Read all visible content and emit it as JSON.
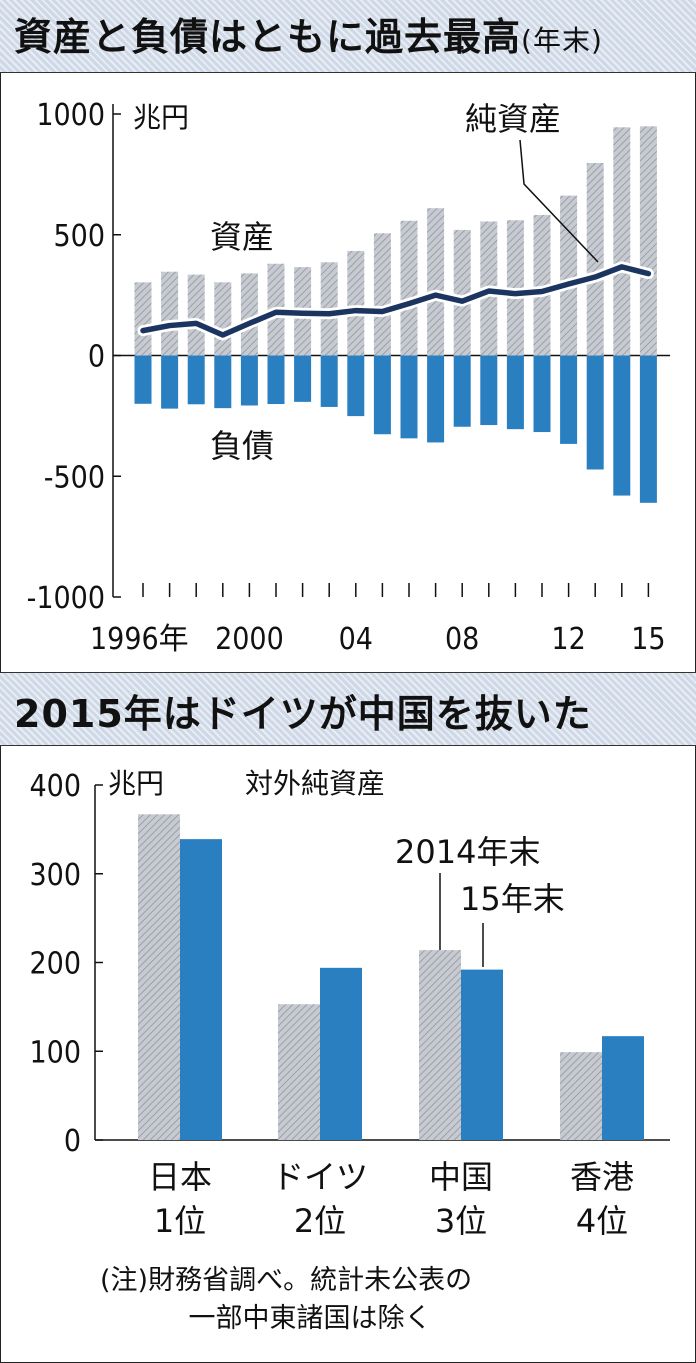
{
  "chart_data": [
    {
      "type": "bar",
      "title": "資産と負債はともに過去最高",
      "title_suffix": "(年末)",
      "unit": "兆円",
      "ylim": [
        -1000,
        1000
      ],
      "y_ticks": [
        "1000",
        "500",
        "0",
        "-500",
        "-1000"
      ],
      "y_tick_values": [
        1000,
        500,
        0,
        -500,
        -1000
      ],
      "x": [
        1996,
        1997,
        1998,
        1999,
        2000,
        2001,
        2002,
        2003,
        2004,
        2005,
        2006,
        2007,
        2008,
        2009,
        2010,
        2011,
        2012,
        2013,
        2014,
        2015
      ],
      "x_tick_labels": [
        "1996年",
        "2000",
        "04",
        "08",
        "12",
        "15"
      ],
      "x_tick_years": [
        1996,
        2000,
        2004,
        2008,
        2012,
        2015
      ],
      "series": [
        {
          "name": "資産",
          "kind": "bar",
          "color": "#b8bcc2",
          "values": [
            303,
            347,
            335,
            303,
            340,
            380,
            366,
            386,
            433,
            506,
            558,
            610,
            520,
            555,
            560,
            582,
            662,
            797,
            945,
            949
          ]
        },
        {
          "name": "負債",
          "kind": "bar",
          "color": "#2a7fc1",
          "values": [
            -200,
            -220,
            -202,
            -218,
            -207,
            -201,
            -192,
            -213,
            -251,
            -326,
            -343,
            -360,
            -295,
            -288,
            -305,
            -317,
            -366,
            -472,
            -580,
            -610
          ]
        },
        {
          "name": "純資産",
          "kind": "line",
          "color": "#1c3560",
          "values": [
            103,
            124,
            133,
            85,
            133,
            179,
            175,
            173,
            186,
            182,
            215,
            250,
            225,
            267,
            256,
            265,
            296,
            325,
            367,
            339
          ]
        }
      ],
      "grid": false,
      "legend": "inline-labels"
    },
    {
      "type": "bar",
      "title": "2015年はドイツが中国を抜いた",
      "unit": "兆円",
      "subtitle": "対外純資産",
      "ylim": [
        0,
        400
      ],
      "y_ticks": [
        "400",
        "300",
        "200",
        "100",
        "0"
      ],
      "y_tick_values": [
        400,
        300,
        200,
        100,
        0
      ],
      "categories": [
        "日本",
        "ドイツ",
        "中国",
        "香港"
      ],
      "ranks": [
        "1位",
        "2位",
        "3位",
        "4位"
      ],
      "series": [
        {
          "name": "2014年末",
          "color": "#b8bcc2",
          "values": [
            367,
            153,
            214,
            99
          ]
        },
        {
          "name": "15年末",
          "color": "#2a7fc1",
          "values": [
            339,
            194,
            192,
            117
          ]
        }
      ],
      "grid": false,
      "legend": "callout-labels"
    }
  ],
  "note_lines": [
    "(注)財務省調べ。統計未公表の",
    "一部中東諸国は除く"
  ]
}
